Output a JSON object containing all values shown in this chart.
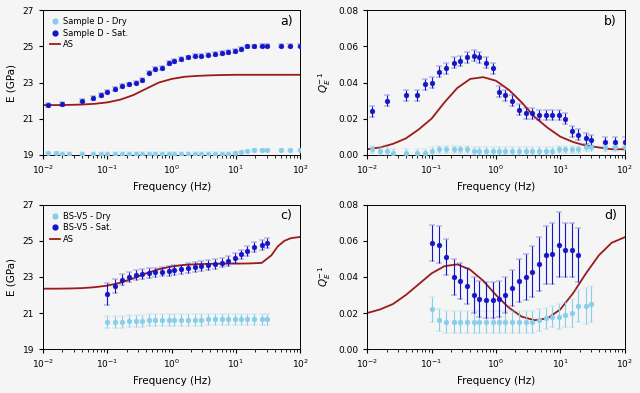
{
  "panel_a": {
    "label": "a)",
    "xlabel": "Frequency (Hz)",
    "ylabel": "E (GPa)",
    "ylim": [
      19,
      27
    ],
    "yticks": [
      19,
      21,
      23,
      25,
      27
    ],
    "legend": [
      "Sample D - Dry",
      "Sample D - Sat.",
      "AS"
    ],
    "dry_x": [
      0.012,
      0.016,
      0.02,
      0.025,
      0.04,
      0.06,
      0.08,
      0.1,
      0.13,
      0.17,
      0.22,
      0.28,
      0.35,
      0.45,
      0.55,
      0.7,
      0.9,
      1.1,
      1.4,
      1.8,
      2.3,
      2.9,
      3.7,
      4.7,
      6.0,
      7.5,
      9.5,
      12.0,
      15.0,
      19.0,
      25.0,
      30.0,
      50.0,
      70.0,
      100.0
    ],
    "dry_y": [
      19.1,
      19.1,
      19.05,
      19.05,
      19.05,
      19.05,
      19.05,
      19.05,
      19.05,
      19.05,
      19.05,
      19.05,
      19.05,
      19.05,
      19.05,
      19.05,
      19.05,
      19.05,
      19.05,
      19.05,
      19.05,
      19.05,
      19.05,
      19.05,
      19.05,
      19.05,
      19.1,
      19.15,
      19.2,
      19.25,
      19.25,
      19.25,
      19.25,
      19.25,
      19.25
    ],
    "dry_yerr": [
      0.07,
      0.07,
      0.07,
      0.07,
      0.07,
      0.07,
      0.07,
      0.07,
      0.07,
      0.07,
      0.07,
      0.07,
      0.07,
      0.07,
      0.07,
      0.07,
      0.07,
      0.07,
      0.07,
      0.07,
      0.07,
      0.07,
      0.07,
      0.07,
      0.07,
      0.07,
      0.07,
      0.07,
      0.07,
      0.07,
      0.07,
      0.07,
      0.07,
      0.07,
      0.07
    ],
    "sat_x": [
      0.012,
      0.02,
      0.04,
      0.06,
      0.08,
      0.1,
      0.13,
      0.17,
      0.22,
      0.28,
      0.35,
      0.45,
      0.55,
      0.7,
      0.9,
      1.1,
      1.4,
      1.8,
      2.3,
      2.9,
      3.7,
      4.7,
      6.0,
      7.5,
      9.5,
      12.0,
      15.0,
      19.0,
      25.0,
      30.0,
      50.0,
      70.0,
      100.0
    ],
    "sat_y": [
      21.75,
      21.8,
      22.0,
      22.15,
      22.3,
      22.5,
      22.65,
      22.8,
      22.9,
      23.0,
      23.15,
      23.55,
      23.75,
      23.8,
      24.1,
      24.2,
      24.3,
      24.4,
      24.5,
      24.5,
      24.55,
      24.6,
      24.65,
      24.7,
      24.75,
      24.85,
      25.0,
      25.0,
      25.05,
      25.05,
      25.05,
      25.05,
      25.05
    ],
    "sat_yerr": [
      0.12,
      0.1,
      0.1,
      0.1,
      0.1,
      0.1,
      0.1,
      0.1,
      0.1,
      0.1,
      0.1,
      0.1,
      0.1,
      0.1,
      0.1,
      0.1,
      0.1,
      0.1,
      0.1,
      0.1,
      0.1,
      0.1,
      0.1,
      0.1,
      0.1,
      0.1,
      0.1,
      0.1,
      0.1,
      0.1,
      0.1,
      0.1,
      0.1
    ],
    "as_x_log": [
      -2.0,
      -1.8,
      -1.6,
      -1.4,
      -1.2,
      -1.0,
      -0.8,
      -0.6,
      -0.4,
      -0.2,
      0.0,
      0.2,
      0.4,
      0.6,
      0.8,
      1.0,
      1.2,
      1.4,
      1.6,
      1.8,
      2.0
    ],
    "as_E": [
      21.75,
      21.75,
      21.76,
      21.78,
      21.82,
      21.9,
      22.05,
      22.3,
      22.65,
      23.0,
      23.2,
      23.32,
      23.37,
      23.4,
      23.42,
      23.43,
      23.43,
      23.43,
      23.43,
      23.43,
      23.43
    ]
  },
  "panel_b": {
    "label": "b)",
    "xlabel": "Frequency (Hz)",
    "ylabel": "$Q_E^{-1}$",
    "ylim": [
      0,
      0.08
    ],
    "yticks": [
      0,
      0.02,
      0.04,
      0.06,
      0.08
    ],
    "dry_x": [
      0.012,
      0.016,
      0.02,
      0.025,
      0.04,
      0.06,
      0.08,
      0.1,
      0.13,
      0.17,
      0.22,
      0.28,
      0.35,
      0.45,
      0.55,
      0.7,
      0.9,
      1.1,
      1.4,
      1.8,
      2.3,
      2.9,
      3.7,
      4.7,
      6.0,
      7.5,
      9.5,
      12.0,
      15.0,
      19.0,
      25.0,
      30.0,
      50.0,
      70.0,
      100.0
    ],
    "dry_y": [
      0.003,
      0.002,
      0.002,
      0.001,
      0.001,
      0.001,
      0.001,
      0.002,
      0.003,
      0.003,
      0.003,
      0.003,
      0.003,
      0.002,
      0.002,
      0.002,
      0.002,
      0.002,
      0.002,
      0.002,
      0.002,
      0.002,
      0.002,
      0.002,
      0.002,
      0.002,
      0.003,
      0.003,
      0.003,
      0.003,
      0.004,
      0.004,
      0.004,
      0.004,
      0.004
    ],
    "dry_yerr": [
      0.002,
      0.002,
      0.002,
      0.002,
      0.002,
      0.002,
      0.002,
      0.002,
      0.002,
      0.002,
      0.002,
      0.002,
      0.002,
      0.002,
      0.002,
      0.002,
      0.002,
      0.002,
      0.002,
      0.002,
      0.002,
      0.002,
      0.002,
      0.002,
      0.002,
      0.002,
      0.002,
      0.002,
      0.002,
      0.002,
      0.002,
      0.002,
      0.002,
      0.002,
      0.002
    ],
    "sat_x": [
      0.012,
      0.02,
      0.04,
      0.06,
      0.08,
      0.1,
      0.13,
      0.17,
      0.22,
      0.28,
      0.35,
      0.45,
      0.55,
      0.7,
      0.9,
      1.1,
      1.4,
      1.8,
      2.3,
      2.9,
      3.7,
      4.7,
      6.0,
      7.5,
      9.5,
      12.0,
      15.0,
      19.0,
      25.0,
      30.0,
      50.0,
      70.0,
      100.0
    ],
    "sat_y": [
      0.024,
      0.03,
      0.033,
      0.033,
      0.039,
      0.04,
      0.046,
      0.048,
      0.051,
      0.052,
      0.054,
      0.055,
      0.054,
      0.051,
      0.048,
      0.035,
      0.033,
      0.03,
      0.025,
      0.023,
      0.023,
      0.022,
      0.022,
      0.022,
      0.022,
      0.02,
      0.013,
      0.011,
      0.009,
      0.008,
      0.007,
      0.007,
      0.007
    ],
    "sat_yerr": [
      0.003,
      0.003,
      0.003,
      0.003,
      0.003,
      0.003,
      0.003,
      0.003,
      0.003,
      0.003,
      0.003,
      0.003,
      0.003,
      0.003,
      0.003,
      0.003,
      0.003,
      0.003,
      0.003,
      0.003,
      0.003,
      0.003,
      0.003,
      0.003,
      0.003,
      0.003,
      0.003,
      0.003,
      0.003,
      0.003,
      0.003,
      0.003,
      0.003
    ],
    "as_x_log": [
      -2.0,
      -1.8,
      -1.6,
      -1.4,
      -1.2,
      -1.0,
      -0.8,
      -0.6,
      -0.4,
      -0.2,
      0.0,
      0.2,
      0.4,
      0.6,
      0.8,
      1.0,
      1.2,
      1.4,
      1.6,
      1.8,
      2.0
    ],
    "as_Q": [
      0.003,
      0.004,
      0.006,
      0.009,
      0.014,
      0.02,
      0.029,
      0.037,
      0.042,
      0.043,
      0.041,
      0.036,
      0.029,
      0.021,
      0.015,
      0.01,
      0.007,
      0.005,
      0.004,
      0.003,
      0.003
    ]
  },
  "panel_c": {
    "label": "c)",
    "xlabel": "Frequency (Hz)",
    "ylabel": "E (GPa)",
    "ylim": [
      19,
      27
    ],
    "yticks": [
      19,
      21,
      23,
      25,
      27
    ],
    "legend": [
      "BS-V5 - Dry",
      "BS-V5 - Sat.",
      "AS"
    ],
    "dry_x": [
      0.1,
      0.13,
      0.17,
      0.22,
      0.28,
      0.35,
      0.45,
      0.55,
      0.7,
      0.9,
      1.1,
      1.4,
      1.8,
      2.3,
      2.9,
      3.7,
      4.7,
      6.0,
      7.5,
      9.5,
      12.0,
      15.0,
      19.0,
      25.0,
      30.0
    ],
    "dry_y": [
      20.5,
      20.5,
      20.5,
      20.55,
      20.55,
      20.55,
      20.6,
      20.6,
      20.6,
      20.6,
      20.6,
      20.6,
      20.6,
      20.6,
      20.6,
      20.65,
      20.65,
      20.65,
      20.65,
      20.65,
      20.65,
      20.65,
      20.65,
      20.65,
      20.65
    ],
    "dry_yerr": [
      0.35,
      0.35,
      0.32,
      0.32,
      0.32,
      0.32,
      0.32,
      0.32,
      0.32,
      0.32,
      0.32,
      0.32,
      0.32,
      0.32,
      0.32,
      0.32,
      0.32,
      0.32,
      0.32,
      0.32,
      0.32,
      0.32,
      0.32,
      0.32,
      0.32
    ],
    "sat_x": [
      0.1,
      0.13,
      0.17,
      0.22,
      0.28,
      0.35,
      0.45,
      0.55,
      0.7,
      0.9,
      1.1,
      1.4,
      1.8,
      2.3,
      2.9,
      3.7,
      4.7,
      6.0,
      7.5,
      9.5,
      12.0,
      15.0,
      19.0,
      25.0,
      30.0
    ],
    "sat_y": [
      22.05,
      22.5,
      22.85,
      23.0,
      23.1,
      23.15,
      23.2,
      23.25,
      23.3,
      23.35,
      23.4,
      23.42,
      23.5,
      23.55,
      23.6,
      23.65,
      23.7,
      23.8,
      23.9,
      24.05,
      24.25,
      24.45,
      24.65,
      24.78,
      24.88
    ],
    "sat_yerr": [
      0.6,
      0.38,
      0.32,
      0.3,
      0.28,
      0.28,
      0.27,
      0.27,
      0.27,
      0.27,
      0.27,
      0.27,
      0.27,
      0.27,
      0.27,
      0.27,
      0.27,
      0.27,
      0.27,
      0.27,
      0.27,
      0.27,
      0.27,
      0.27,
      0.27
    ],
    "as_x_log": [
      -2.0,
      -1.8,
      -1.6,
      -1.4,
      -1.2,
      -1.0,
      -0.8,
      -0.6,
      -0.4,
      -0.2,
      0.0,
      0.2,
      0.4,
      0.6,
      0.8,
      1.0,
      1.2,
      1.4,
      1.55,
      1.65,
      1.75,
      1.85,
      1.95,
      2.0
    ],
    "as_E": [
      22.35,
      22.35,
      22.36,
      22.38,
      22.43,
      22.52,
      22.68,
      22.92,
      23.2,
      23.43,
      23.58,
      23.67,
      23.71,
      23.73,
      23.74,
      23.74,
      23.75,
      23.78,
      24.2,
      24.7,
      25.0,
      25.15,
      25.2,
      25.22
    ]
  },
  "panel_d": {
    "label": "d)",
    "xlabel": "Frequency (Hz)",
    "ylabel": "$Q_E^{-1}$",
    "ylim": [
      0,
      0.08
    ],
    "yticks": [
      0,
      0.02,
      0.04,
      0.06,
      0.08
    ],
    "dry_x": [
      0.1,
      0.13,
      0.17,
      0.22,
      0.28,
      0.35,
      0.45,
      0.55,
      0.7,
      0.9,
      1.1,
      1.4,
      1.8,
      2.3,
      2.9,
      3.7,
      4.7,
      6.0,
      7.5,
      9.5,
      12.0,
      15.0,
      19.0,
      25.0,
      30.0
    ],
    "dry_y": [
      0.022,
      0.016,
      0.015,
      0.015,
      0.015,
      0.015,
      0.015,
      0.015,
      0.015,
      0.015,
      0.015,
      0.015,
      0.015,
      0.015,
      0.015,
      0.015,
      0.016,
      0.017,
      0.018,
      0.018,
      0.019,
      0.02,
      0.024,
      0.024,
      0.025
    ],
    "dry_yerr": [
      0.007,
      0.006,
      0.006,
      0.006,
      0.006,
      0.006,
      0.006,
      0.006,
      0.006,
      0.006,
      0.006,
      0.006,
      0.006,
      0.006,
      0.006,
      0.006,
      0.006,
      0.006,
      0.006,
      0.007,
      0.007,
      0.008,
      0.009,
      0.01,
      0.01
    ],
    "sat_x": [
      0.1,
      0.13,
      0.17,
      0.22,
      0.28,
      0.35,
      0.45,
      0.55,
      0.7,
      0.9,
      1.1,
      1.4,
      1.8,
      2.3,
      2.9,
      3.7,
      4.7,
      6.0,
      7.5,
      9.5,
      12.0,
      15.0,
      19.0
    ],
    "sat_y": [
      0.059,
      0.058,
      0.051,
      0.04,
      0.038,
      0.035,
      0.03,
      0.028,
      0.027,
      0.027,
      0.028,
      0.03,
      0.034,
      0.038,
      0.04,
      0.043,
      0.047,
      0.052,
      0.053,
      0.058,
      0.055,
      0.055,
      0.052
    ],
    "sat_yerr": [
      0.01,
      0.01,
      0.01,
      0.01,
      0.01,
      0.01,
      0.01,
      0.01,
      0.01,
      0.01,
      0.01,
      0.01,
      0.01,
      0.012,
      0.013,
      0.014,
      0.015,
      0.016,
      0.017,
      0.018,
      0.015,
      0.015,
      0.015
    ],
    "as_x_log": [
      -2.0,
      -1.8,
      -1.6,
      -1.4,
      -1.2,
      -1.0,
      -0.8,
      -0.6,
      -0.4,
      -0.2,
      0.0,
      0.2,
      0.4,
      0.6,
      0.8,
      1.0,
      1.2,
      1.4,
      1.6,
      1.8,
      2.0
    ],
    "as_Q": [
      0.02,
      0.022,
      0.025,
      0.03,
      0.036,
      0.042,
      0.046,
      0.047,
      0.044,
      0.038,
      0.03,
      0.023,
      0.018,
      0.016,
      0.017,
      0.022,
      0.031,
      0.042,
      0.052,
      0.059,
      0.062
    ]
  },
  "dry_color": "#87CEEB",
  "sat_color": "#1515c8",
  "as_color": "#9B1B1B",
  "markersize": 3.5,
  "capsize": 2,
  "linewidth_as": 1.3,
  "elinewidth": 0.8,
  "background_color": "#f5f5f5"
}
